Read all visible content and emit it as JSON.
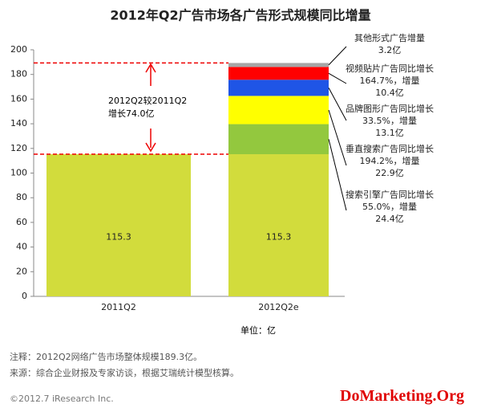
{
  "chart_data": {
    "type": "stacked_bar",
    "title": "2012年Q2广告市场各广告形式规模同比增量",
    "categories": [
      "2011Q2",
      "2012Q2e"
    ],
    "series": [
      {
        "color": "#d2dc3c",
        "values": [
          115.3,
          115.3
        ]
      },
      {
        "name": "搜索引擎广告同比增长55.0%，增量",
        "color": "#93c83e",
        "values": [
          null,
          24.4
        ],
        "value_labels": [
          null,
          "24.4亿"
        ]
      },
      {
        "name": "垂直搜索广告同比增长194.2%，增量",
        "color": "#ffff00",
        "values": [
          null,
          22.9
        ],
        "value_labels": [
          null,
          "22.9亿"
        ]
      },
      {
        "name": "品牌图形广告同比增长33.5%，增量",
        "color": "#1f55e6",
        "values": [
          null,
          13.1
        ],
        "value_labels": [
          null,
          "13.1亿"
        ]
      },
      {
        "name": "视频贴片广告同比增长164.7%，增量",
        "color": "#ff0000",
        "values": [
          null,
          10.4
        ],
        "value_labels": [
          null,
          "10.4亿"
        ]
      },
      {
        "name": "其他形式广告增量",
        "color": "#a6a6a6",
        "values": [
          null,
          3.2
        ],
        "value_labels": [
          null,
          "3.2亿"
        ]
      }
    ],
    "ylim": [
      0,
      200
    ],
    "yticks": [
      0,
      20,
      40,
      60,
      80,
      100,
      120,
      140,
      160,
      180,
      200
    ],
    "grid": false,
    "annotation": "2012Q2较2011Q2增长74.0亿",
    "unit_label": "单位：亿",
    "note": "注释：2012Q2网络广告市场整体规模189.3亿。",
    "source": "来源：综合企业财报及专家访谈，根据艾瑞统计模型核算。",
    "copyright": "©2012.7 iResearch Inc.",
    "watermark": "DoMarketing.Org"
  }
}
